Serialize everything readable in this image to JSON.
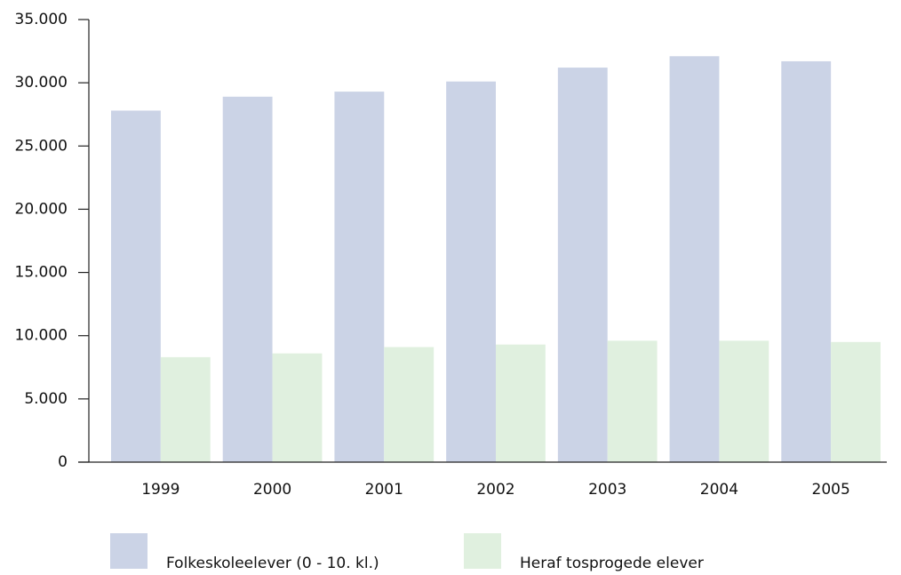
{
  "chart_data": {
    "type": "bar",
    "categories": [
      "1999",
      "2000",
      "2001",
      "2002",
      "2003",
      "2004",
      "2005"
    ],
    "series": [
      {
        "name": "Folkeskoleelever (0 - 10. kl.)",
        "color": "#cbd3e6",
        "values": [
          27800,
          28900,
          29300,
          30100,
          31200,
          32100,
          31700
        ]
      },
      {
        "name": "Heraf tosprogede elever",
        "color": "#e0f0df",
        "values": [
          8300,
          8600,
          9100,
          9300,
          9600,
          9600,
          9500
        ]
      }
    ],
    "ylim": [
      0,
      35000
    ],
    "yticks": [
      0,
      {
        "value": 5000,
        "label": "5.000"
      },
      {
        "value": 10000,
        "label": "10.000"
      },
      {
        "value": 15000,
        "label": "15.000"
      },
      {
        "value": 20000,
        "label": "20.000"
      },
      {
        "value": 25000,
        "label": "25.000"
      },
      {
        "value": 30000,
        "label": "30.000"
      },
      {
        "value": 35000,
        "label": "35.000"
      }
    ]
  }
}
